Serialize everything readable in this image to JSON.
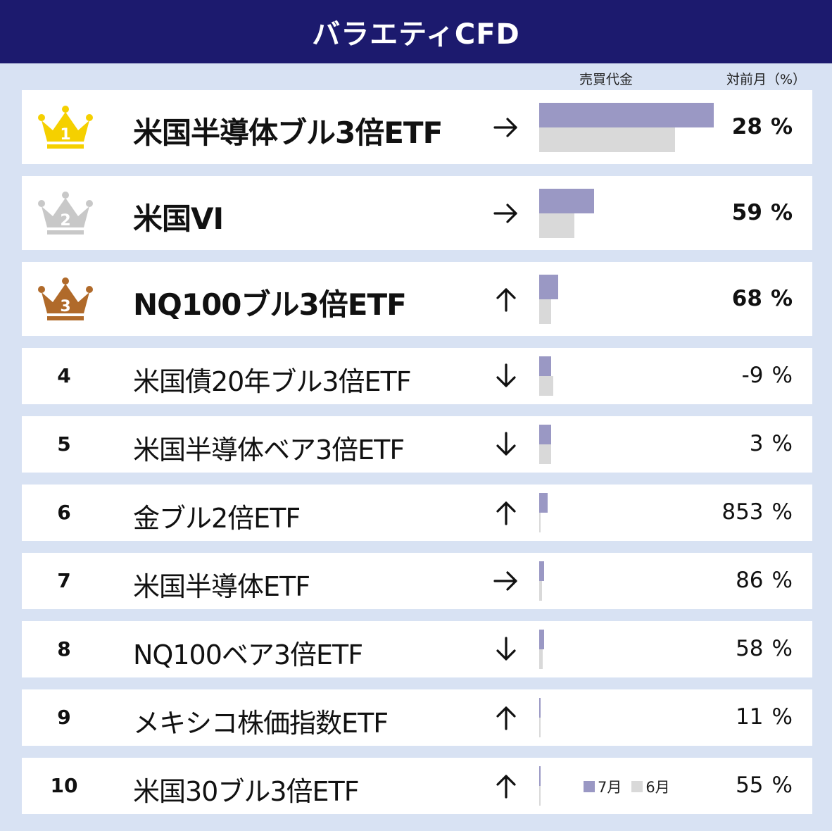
{
  "header": {
    "title": "バラエティCFD"
  },
  "columns": {
    "volume_label": "売買代金",
    "change_label": "対前月（%）"
  },
  "legend": {
    "current": "7月",
    "previous": "6月"
  },
  "colors": {
    "header": "#1c1a6e",
    "current_bar": "#9a98c4",
    "previous_bar": "#d9d9d9",
    "gold": "#f5d000",
    "silver": "#c8c8c8",
    "bronze": "#b06a2a"
  },
  "chart_data": {
    "type": "bar",
    "categories": [
      "米国半導体ブル3倍ETF",
      "米国VI",
      "NQ100ブル3倍ETF",
      "米国債20年ブル3倍ETF",
      "米国半導体ベア3倍ETF",
      "金ブル2倍ETF",
      "米国半導体ETF",
      "NQ100ベア3倍ETF",
      "メキシコ株価指数ETF",
      "米国30ブル3倍ETF"
    ],
    "series": [
      {
        "name": "7月",
        "values": [
          100,
          31.5,
          11,
          7,
          7,
          5,
          3,
          3,
          0.8,
          0.6
        ]
      },
      {
        "name": "6月",
        "values": [
          78,
          20,
          7,
          8,
          7,
          0.5,
          1.5,
          2,
          0.7,
          0.4
        ]
      }
    ],
    "change_pct": [
      28,
      59,
      68,
      -9,
      3,
      853,
      86,
      58,
      11,
      55
    ],
    "trend": [
      "flat",
      "flat",
      "up",
      "down",
      "down",
      "up",
      "flat",
      "down",
      "up",
      "up"
    ]
  },
  "rows": [
    {
      "rank": "1",
      "name": "米国半導体ブル3倍ETF",
      "pct": "28",
      "unit": "%",
      "medal": "gold"
    },
    {
      "rank": "2",
      "name": "米国VI",
      "pct": "59",
      "unit": "%",
      "medal": "silver"
    },
    {
      "rank": "3",
      "name": "NQ100ブル3倍ETF",
      "pct": "68",
      "unit": "%",
      "medal": "bronze"
    },
    {
      "rank": "4",
      "name": "米国債20年ブル3倍ETF",
      "pct": "-9",
      "unit": "%"
    },
    {
      "rank": "5",
      "name": "米国半導体ベア3倍ETF",
      "pct": "3",
      "unit": "%"
    },
    {
      "rank": "6",
      "name": "金ブル2倍ETF",
      "pct": "853",
      "unit": "%"
    },
    {
      "rank": "7",
      "name": "米国半導体ETF",
      "pct": "86",
      "unit": "%"
    },
    {
      "rank": "8",
      "name": "NQ100ベア3倍ETF",
      "pct": "58",
      "unit": "%"
    },
    {
      "rank": "9",
      "name": "メキシコ株価指数ETF",
      "pct": "11",
      "unit": "%"
    },
    {
      "rank": "10",
      "name": "米国30ブル3倍ETF",
      "pct": "55",
      "unit": "%"
    }
  ]
}
